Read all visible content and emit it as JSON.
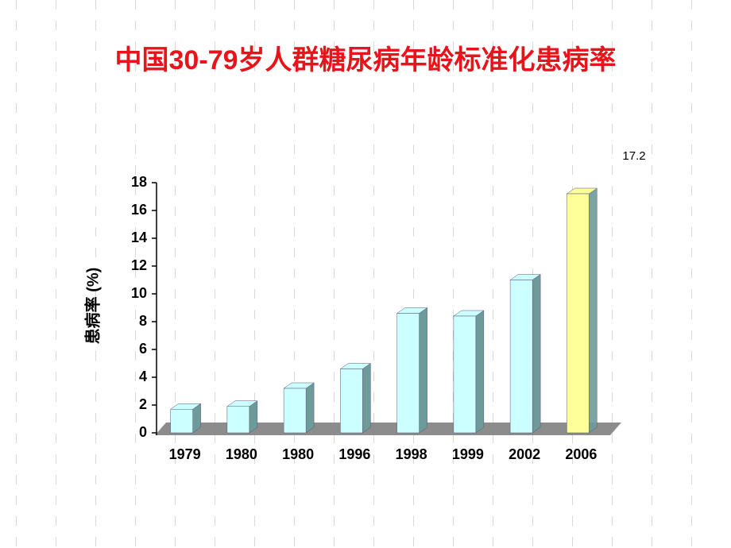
{
  "chart_data": {
    "type": "bar3d",
    "title": "中国30-79岁人群糖尿病年龄标准化患病率",
    "y_label": "患病率 (%)",
    "categories": [
      "1979",
      "1980",
      "1980",
      "1996",
      "1998",
      "1999",
      "2002",
      "2006"
    ],
    "values": [
      1.7,
      1.9,
      3.2,
      4.6,
      8.6,
      8.4,
      11.0,
      17.2
    ],
    "value_labels": [
      null,
      null,
      null,
      null,
      null,
      null,
      null,
      "17.2"
    ],
    "colors": [
      "#ccffff",
      "#ccffff",
      "#ccffff",
      "#ccffff",
      "#ccffff",
      "#ccffff",
      "#ccffff",
      "#ffff99"
    ],
    "ylim": [
      0,
      18
    ],
    "yticks": [
      0,
      2,
      4,
      6,
      8,
      10,
      12,
      14,
      16,
      18
    ]
  }
}
